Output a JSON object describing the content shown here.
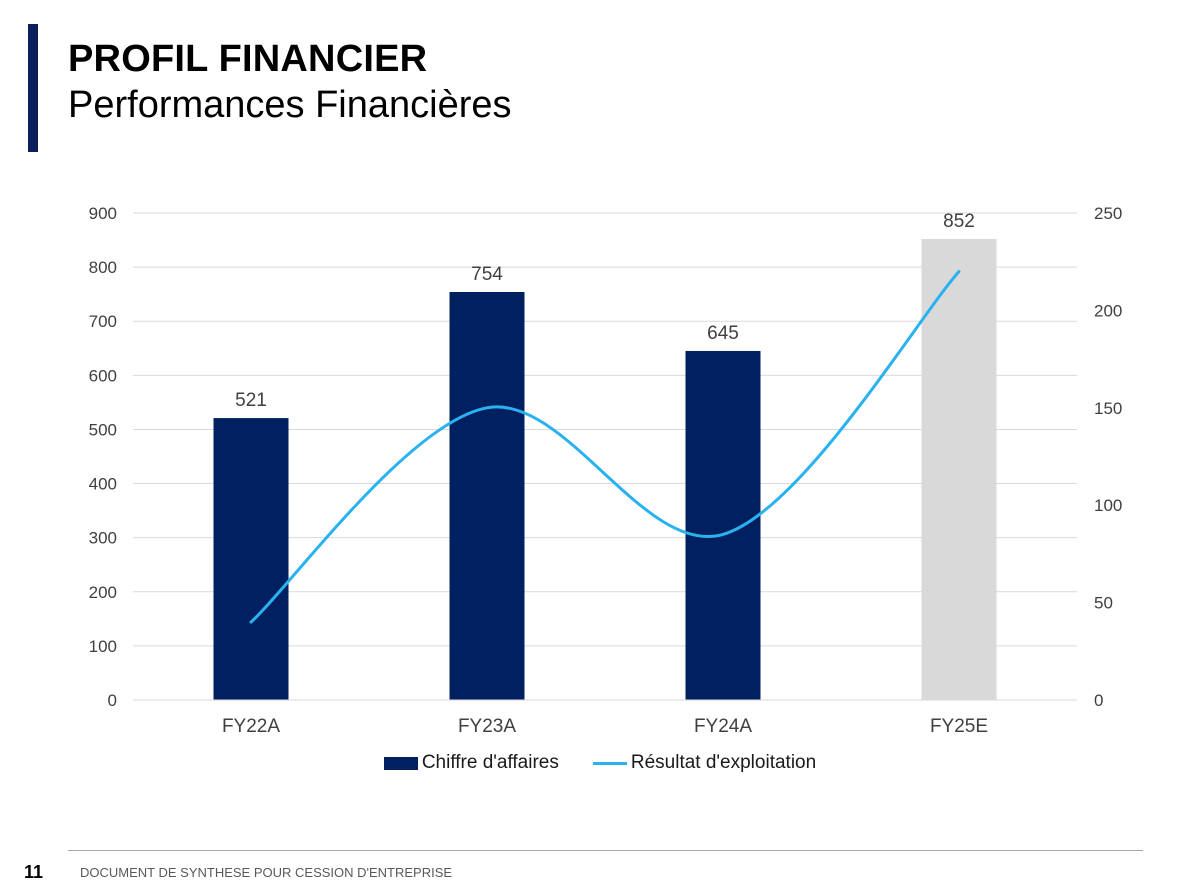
{
  "header": {
    "title": "PROFIL FINANCIER",
    "subtitle": "Performances Financières",
    "accent_color": "#0a1f5c"
  },
  "chart_data": {
    "type": "bar",
    "categories": [
      "FY22A",
      "FY23A",
      "FY24A",
      "FY25E"
    ],
    "series": [
      {
        "name": "Chiffre d'affaires",
        "kind": "bar",
        "axis": "left",
        "values": [
          521,
          754,
          645,
          852
        ],
        "colors": [
          "#002060",
          "#002060",
          "#002060",
          "#d9d9d9"
        ],
        "data_labels": [
          "521",
          "754",
          "645",
          "852"
        ]
      },
      {
        "name": "Résultat d'exploitation",
        "kind": "line",
        "axis": "right",
        "smooth": true,
        "values": [
          40,
          150,
          85,
          220
        ],
        "color": "#29b2ef"
      }
    ],
    "y_left": {
      "ylim": [
        0,
        900
      ],
      "ticks": [
        "0",
        "100",
        "200",
        "300",
        "400",
        "500",
        "600",
        "700",
        "800",
        "900"
      ]
    },
    "y_right": {
      "ylim": [
        0,
        250
      ],
      "ticks": [
        "0",
        "50",
        "100",
        "150",
        "200",
        "250"
      ]
    },
    "grid": true,
    "legend_position": "bottom"
  },
  "legend": {
    "bar_label": "Chiffre d'affaires",
    "line_label": "Résultat d'exploitation"
  },
  "footer": {
    "page_number": "11",
    "text": "DOCUMENT DE SYNTHESE POUR CESSION D'ENTREPRISE"
  }
}
